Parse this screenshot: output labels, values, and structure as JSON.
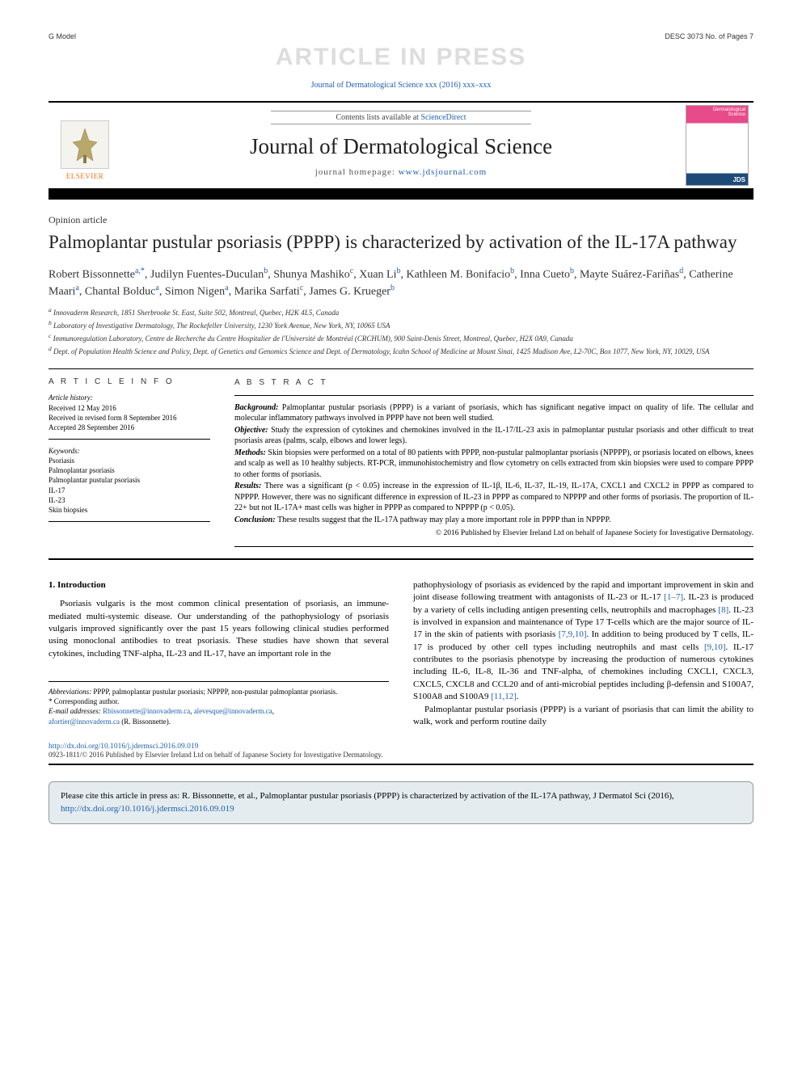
{
  "gmodel": {
    "left": "G Model",
    "right": "DESC 3073 No. of Pages 7"
  },
  "watermark": "ARTICLE IN PRESS",
  "citation_top": "Journal of Dermatological Science xxx (2016) xxx–xxx",
  "masthead": {
    "contents_text": "Contents lists available at ",
    "contents_link": "ScienceDirect",
    "journal_name": "Journal of Dermatological Science",
    "homepage_label": "journal homepage: ",
    "homepage_url": "www.jdsjournal.com",
    "elsevier_label": "ELSEVIER"
  },
  "article_type": "Opinion article",
  "title": "Palmoplantar pustular psoriasis (PPPP) is characterized by activation of the IL-17A pathway",
  "authors_html": "Robert Bissonnette<sup>a,*</sup>, Judilyn Fuentes-Duculan<sup>b</sup>, Shunya Mashiko<sup>c</sup>, Xuan Li<sup>b</sup>, Kathleen M. Bonifacio<sup>b</sup>, Inna Cueto<sup>b</sup>, Mayte Suárez-Fariñas<sup>d</sup>, Catherine Maari<sup>a</sup>, Chantal Bolduc<sup>a</sup>, Simon Nigen<sup>a</sup>, Marika Sarfati<sup>c</sup>, James G. Krueger<sup>b</sup>",
  "affiliations": [
    "a Innovaderm Research, 1851 Sherbrooke St. East, Suite 502, Montreal, Quebec, H2K 4L5, Canada",
    "b Laboratory of Investigative Dermatology, The Rockefeller University, 1230 York Avenue, New York, NY, 10065 USA",
    "c Immunoregulation Laboratory, Centre de Recherche du Centre Hospitalier de l'Université de Montréal (CRCHUM), 900 Saint-Denis Street, Montreal, Quebec, H2X 0A9, Canada",
    "d Dept. of Population Health Science and Policy, Dept. of Genetics and Genomics Science and Dept. of Dermatology, Icahn School of Medicine at Mount Sinai, 1425 Madison Ave, L2-70C, Box 1077, New York, NY, 10029, USA"
  ],
  "article_info": {
    "label": "A R T I C L E   I N F O",
    "history_label": "Article history:",
    "history": [
      "Received 12 May 2016",
      "Received in revised form 8 September 2016",
      "Accepted 28 September 2016"
    ],
    "keywords_label": "Keywords:",
    "keywords": [
      "Psoriasis",
      "Palmoplantar psoriasis",
      "Palmoplantar pustular psoriasis",
      "IL-17",
      "IL-23",
      "Skin biopsies"
    ]
  },
  "abstract": {
    "label": "A B S T R A C T",
    "background": "Palmoplantar pustular psoriasis (PPPP) is a variant of psoriasis, which has significant negative impact on quality of life. The cellular and molecular inflammatory pathways involved in PPPP have not been well studied.",
    "objective": "Study the expression of cytokines and chemokines involved in the IL-17/IL-23 axis in palmoplantar pustular psoriasis and other difficult to treat psoriasis areas (palms, scalp, elbows and lower legs).",
    "methods": "Skin biopsies were performed on a total of 80 patients with PPPP, non-pustular palmoplantar psoriasis (NPPPP), or psoriasis located on elbows, knees and scalp as well as 10 healthy subjects. RT-PCR, immunohistochemistry and flow cytometry on cells extracted from skin biopsies were used to compare PPPP to other forms of psoriasis.",
    "results": "There was a significant (p < 0.05) increase in the expression of IL-1β, IL-6, IL-37, IL-19, IL-17A, CXCL1 and CXCL2 in PPPP as compared to NPPPP. However, there was no significant difference in expression of IL-23 in PPPP as compared to NPPPP and other forms of psoriasis. The proportion of IL-22+ but not IL-17A+ mast cells was higher in PPPP as compared to NPPPP (p < 0.05).",
    "conclusion": "These results suggest that the IL-17A pathway may play a more important role in PPPP than in NPPPP.",
    "copyright": "© 2016 Published by Elsevier Ireland Ltd on behalf of Japanese Society for Investigative Dermatology."
  },
  "body": {
    "heading": "1. Introduction",
    "col1": "Psoriasis vulgaris is the most common clinical presentation of psoriasis, an immune-mediated multi-systemic disease. Our understanding of the pathophysiology of psoriasis vulgaris improved significantly over the past 15 years following clinical studies performed using monoclonal antibodies to treat psoriasis. These studies have shown that several cytokines, including TNF-alpha, IL-23 and IL-17, have an important role in the",
    "col2a": "pathophysiology of psoriasis as evidenced by the rapid and important improvement in skin and joint disease following treatment with antagonists of IL-23 or IL-17 ",
    "col2a_ref": "[1–7]",
    "col2b": ". IL-23 is produced by a variety of cells including antigen presenting cells, neutrophils and macrophages ",
    "col2b_ref": "[8]",
    "col2c": ". IL-23 is involved in expansion and maintenance of Type 17 T-cells which are the major source of IL-17 in the skin of patients with psoriasis ",
    "col2c_ref": "[7,9,10]",
    "col2d": ". In addition to being produced by T cells, IL-17 is produced by other cell types including neutrophils and mast cells ",
    "col2d_ref": "[9,10]",
    "col2e": ". IL-17 contributes to the psoriasis phenotype by increasing the production of numerous cytokines including IL-6, IL-8, IL-36 and TNF-alpha, of chemokines including CXCL1, CXCL3, CXCL5, CXCL8 and CCL20 and of anti-microbial peptides including β-defensin and S100A7, S100A8 and S100A9 ",
    "col2e_ref": "[11,12]",
    "col2f": ".",
    "col2_p2": "Palmoplantar pustular psoriasis (PPPP) is a variant of psoriasis that can limit the ability to walk, work and perform routine daily"
  },
  "footnotes": {
    "abbrev_label": "Abbreviations:",
    "abbrev": " PPPP, palmoplantar pustular psoriasis; NPPPP, non-pustular palmoplantar psoriasis.",
    "corr_label": "* Corresponding author.",
    "email_label": "E-mail addresses:",
    "emails": [
      "Rbissonnette@innovaderm.ca",
      "alevesque@innovaderm.ca",
      "afortier@innovaderm.ca"
    ],
    "email_tail": " (R. Bissonnette)."
  },
  "doi": {
    "url": "http://dx.doi.org/10.1016/j.jdermsci.2016.09.019",
    "line2": "0923-1811/© 2016 Published by Elsevier Ireland Ltd on behalf of Japanese Society for Investigative Dermatology."
  },
  "cite_box": {
    "text": "Please cite this article in press as: R. Bissonnette, et al., Palmoplantar pustular psoriasis (PPPP) is characterized by activation of the IL-17A pathway, J Dermatol Sci (2016), ",
    "url": "http://dx.doi.org/10.1016/j.jdermsci.2016.09.019"
  }
}
